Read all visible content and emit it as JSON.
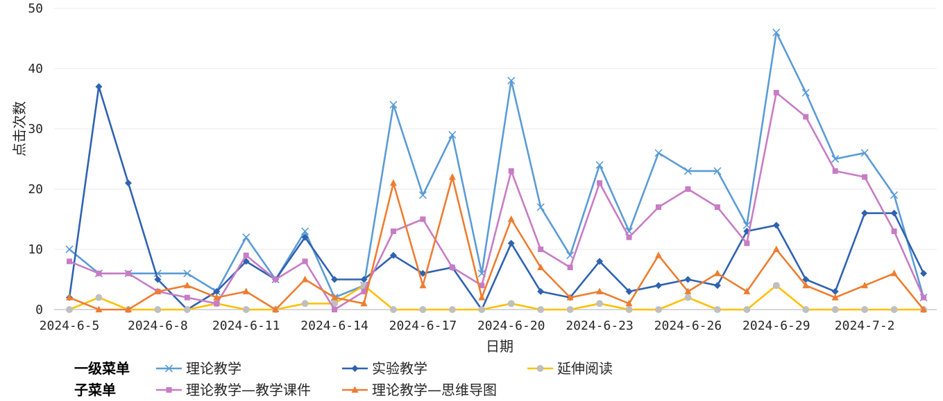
{
  "chart_data": {
    "type": "line",
    "xlabel": "日期",
    "ylabel": "点击次数",
    "ylim": [
      0,
      50
    ],
    "yticks": [
      0,
      10,
      20,
      30,
      40,
      50
    ],
    "x": [
      "2024-6-5",
      "2024-6-6",
      "2024-6-7",
      "2024-6-8",
      "2024-6-9",
      "2024-6-10",
      "2024-6-11",
      "2024-6-12",
      "2024-6-13",
      "2024-6-14",
      "2024-6-15",
      "2024-6-16",
      "2024-6-17",
      "2024-6-18",
      "2024-6-19",
      "2024-6-20",
      "2024-6-21",
      "2024-6-22",
      "2024-6-23",
      "2024-6-24",
      "2024-6-25",
      "2024-6-26",
      "2024-6-27",
      "2024-6-28",
      "2024-6-29",
      "2024-6-30",
      "2024-7-1",
      "2024-7-2",
      "2024-7-3",
      "2024-7-4"
    ],
    "xticks": [
      "2024-6-5",
      "2024-6-8",
      "2024-6-11",
      "2024-6-14",
      "2024-6-17",
      "2024-6-20",
      "2024-6-23",
      "2024-6-26",
      "2024-6-29",
      "2024-7-2"
    ],
    "grid": true,
    "legend": {
      "position": "bottom",
      "groups": [
        {
          "title": "一级菜单",
          "series": [
            0,
            1,
            2
          ]
        },
        {
          "title": "子菜单",
          "series": [
            3,
            4
          ]
        }
      ]
    },
    "series": [
      {
        "name": "理论教学",
        "color": "#5B9BD5",
        "marker": "x",
        "marker_color": "#5B9BD5",
        "values": [
          10,
          6,
          6,
          6,
          6,
          3,
          12,
          5,
          13,
          2,
          4,
          34,
          19,
          29,
          6,
          38,
          17,
          9,
          24,
          13,
          26,
          23,
          23,
          14,
          46,
          36,
          25,
          26,
          19,
          2
        ]
      },
      {
        "name": "实验教学",
        "color": "#2F62B0",
        "marker": "diamond",
        "marker_color": "#2F62B0",
        "values": [
          2,
          37,
          21,
          5,
          0,
          3,
          8,
          5,
          12,
          5,
          5,
          9,
          6,
          7,
          0,
          11,
          3,
          2,
          8,
          3,
          4,
          5,
          4,
          13,
          14,
          5,
          3,
          16,
          16,
          6
        ]
      },
      {
        "name": "延伸阅读",
        "color": "#FFC000",
        "marker": "circle",
        "marker_color": "#BFBFBF",
        "values": [
          0,
          2,
          0,
          0,
          0,
          1,
          0,
          0,
          1,
          1,
          4,
          0,
          0,
          0,
          0,
          1,
          0,
          0,
          1,
          0,
          0,
          2,
          0,
          0,
          4,
          0,
          0,
          0,
          0,
          0
        ]
      },
      {
        "name": "理论教学—教学课件",
        "color": "#C77CC4",
        "marker": "square",
        "marker_color": "#C77CC4",
        "values": [
          8,
          6,
          6,
          3,
          2,
          1,
          9,
          5,
          8,
          0,
          3,
          13,
          15,
          7,
          4,
          23,
          10,
          7,
          21,
          12,
          17,
          20,
          17,
          11,
          36,
          32,
          23,
          22,
          13,
          2
        ]
      },
      {
        "name": "理论教学—思维导图",
        "color": "#ED7D31",
        "marker": "triangle",
        "marker_color": "#ED7D31",
        "values": [
          2,
          0,
          0,
          3,
          4,
          2,
          3,
          0,
          5,
          2,
          1,
          21,
          4,
          22,
          2,
          15,
          7,
          2,
          3,
          1,
          9,
          3,
          6,
          3,
          10,
          4,
          2,
          4,
          6,
          0
        ]
      }
    ]
  }
}
